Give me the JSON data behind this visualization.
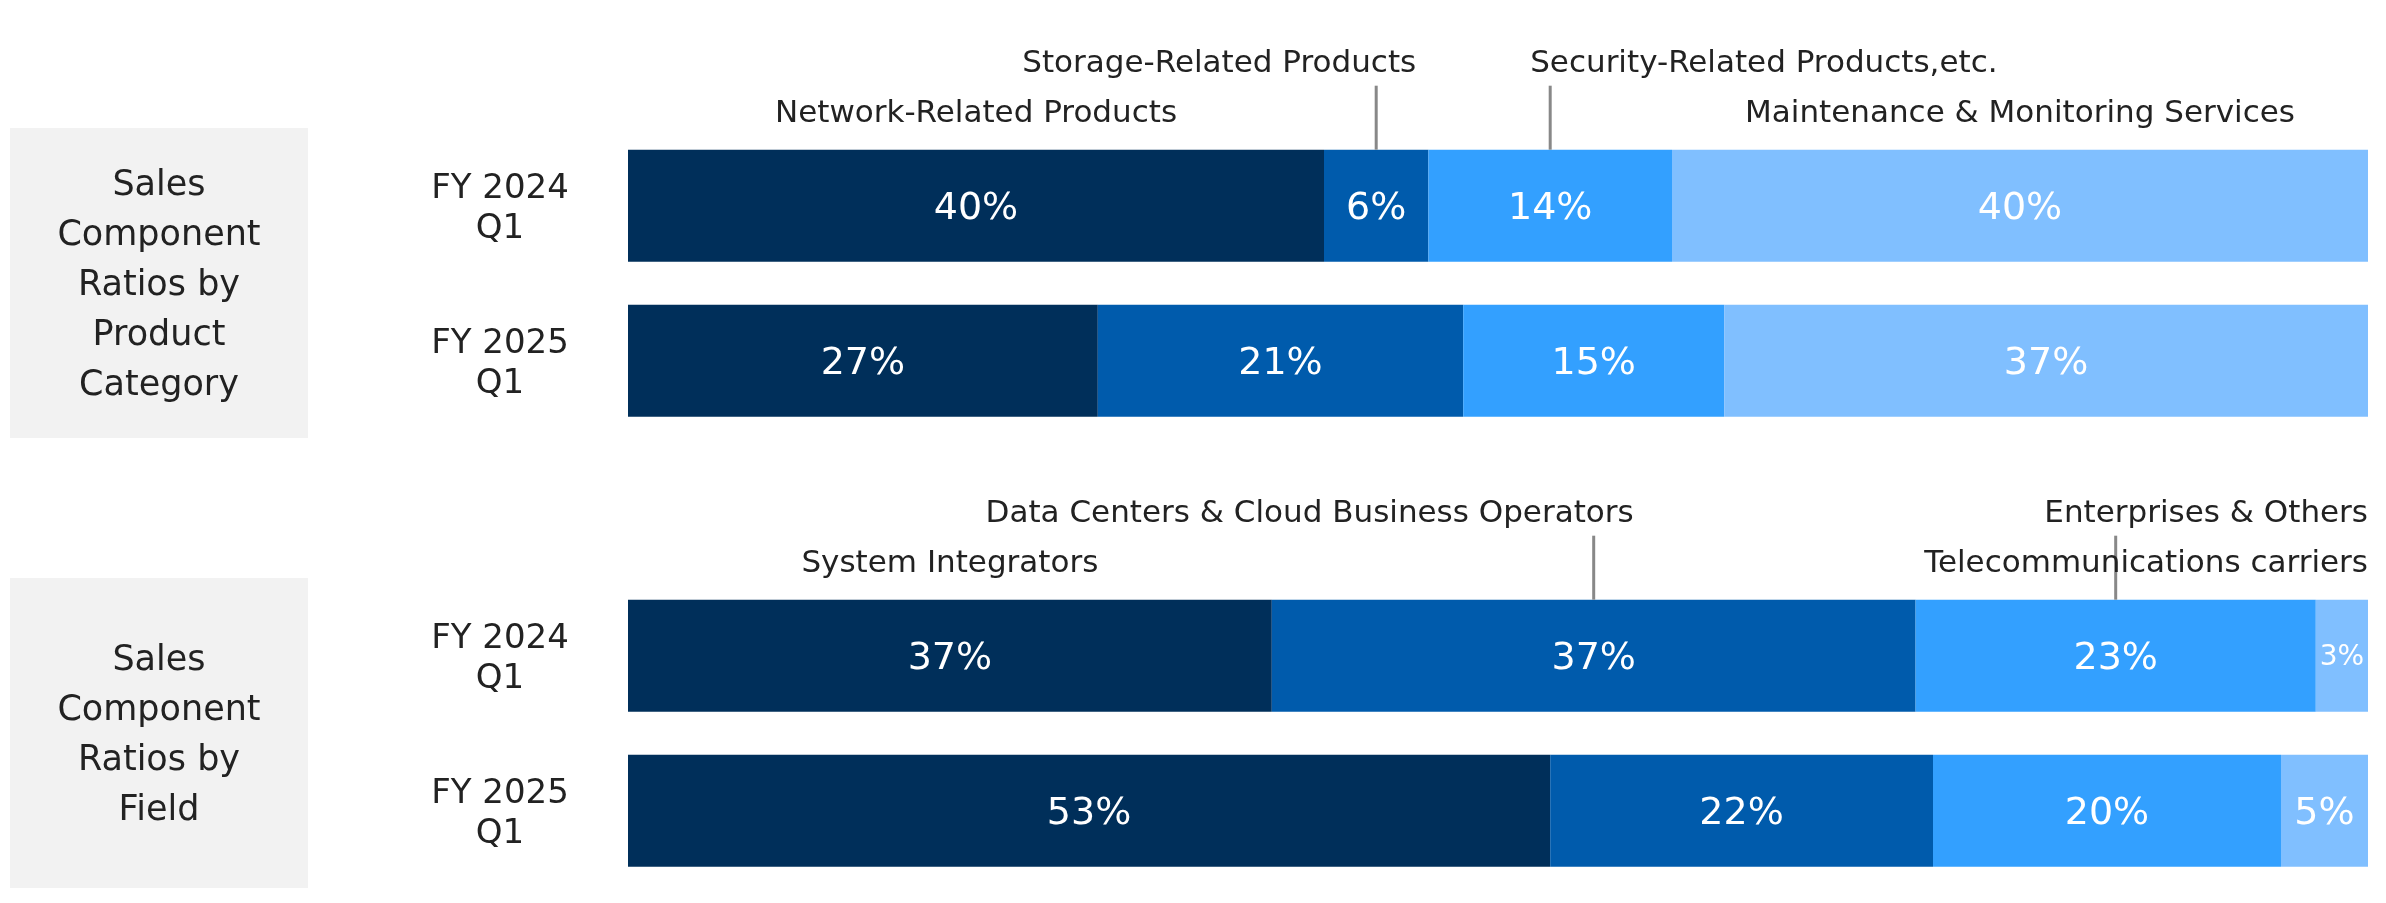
{
  "chart_data": [
    {
      "type": "bar",
      "title": "Sales Component Ratios by Product Category",
      "orientation": "horizontal",
      "stacked": true,
      "categories": [
        "FY 2024 Q1",
        "FY 2025 Q1"
      ],
      "series": [
        {
          "name": "Network-Related Products",
          "color": "#002f5a",
          "values": [
            40,
            27
          ],
          "value_labels": [
            "40%",
            "27%"
          ]
        },
        {
          "name": "Storage-Related Products",
          "color": "#005bac",
          "values": [
            6,
            21
          ],
          "value_labels": [
            "6%",
            "21%"
          ]
        },
        {
          "name": "Security-Related Products,etc.",
          "color": "#33a0ff",
          "values": [
            14,
            15
          ],
          "value_labels": [
            "14%",
            "15%"
          ]
        },
        {
          "name": "Maintenance & Monitoring Services",
          "color": "#80bfff",
          "values": [
            40,
            37
          ],
          "value_labels": [
            "40%",
            "37%"
          ]
        }
      ]
    },
    {
      "type": "bar",
      "title": "Sales Component Ratios by Field",
      "orientation": "horizontal",
      "stacked": true,
      "categories": [
        "FY 2024 Q1",
        "FY 2025 Q1"
      ],
      "series": [
        {
          "name": "System Integrators",
          "color": "#002f5a",
          "values": [
            37,
            53
          ],
          "value_labels": [
            "37%",
            "53%"
          ]
        },
        {
          "name": "Data Centers & Cloud Business Operators",
          "color": "#005bac",
          "values": [
            37,
            22
          ],
          "value_labels": [
            "37%",
            "22%"
          ]
        },
        {
          "name": "Enterprises & Others",
          "color": "#33a0ff",
          "values": [
            23,
            20
          ],
          "value_labels": [
            "23%",
            "20%"
          ]
        },
        {
          "name": "Telecommunications carriers",
          "color": "#80bfff",
          "values": [
            3,
            5
          ],
          "value_labels": [
            "3%",
            "5%"
          ]
        }
      ]
    }
  ]
}
